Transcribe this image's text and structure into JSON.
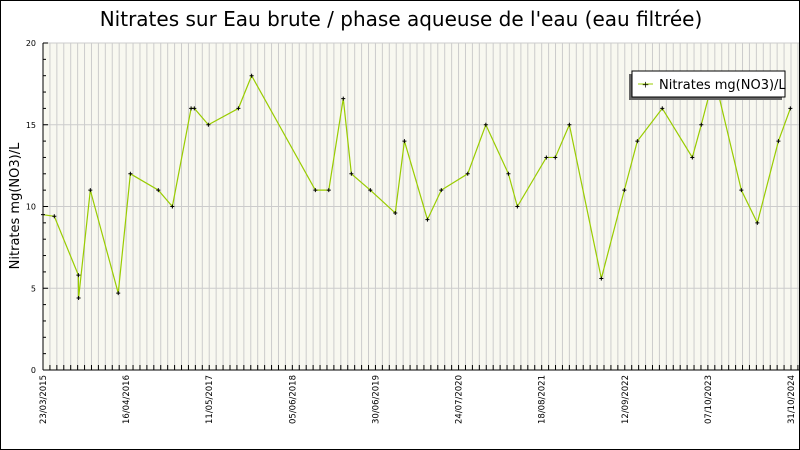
{
  "chart_data": {
    "type": "line",
    "title": "Nitrates sur Eau brute / phase aqueuse de l'eau (eau filtrée)",
    "xlabel": "",
    "ylabel": "Nitrates mg(NO3)/L",
    "ylim": [
      0,
      20
    ],
    "yticks": [
      "0",
      "5",
      "10",
      "15",
      "20"
    ],
    "xlim": [
      "2015-03-23",
      "2024-10-31"
    ],
    "xticks": [
      "23/03/2015",
      "16/04/2016",
      "11/05/2017",
      "05/06/2018",
      "30/06/2019",
      "24/07/2020",
      "18/08/2021",
      "12/09/2022",
      "07/10/2023",
      "31/10/2024"
    ],
    "grid": true,
    "legend_position": "top-right",
    "colors": {
      "line": "#99cc00",
      "marker": "#000000",
      "grid": "#cccccc",
      "plot_bg": "#f8f8f0"
    },
    "series": [
      {
        "name": "Nitrates mg(NO3)/L",
        "x": [
          "2015-03-23",
          "2015-05-15",
          "2015-09-05",
          "2015-09-06",
          "2015-10-31",
          "2016-03-10",
          "2016-05-06",
          "2016-09-14",
          "2016-11-19",
          "2017-02-15",
          "2017-03-02",
          "2017-05-07",
          "2017-09-25",
          "2017-11-26",
          "2018-09-21",
          "2018-11-23",
          "2019-01-30",
          "2019-03-09",
          "2019-06-06",
          "2019-10-01",
          "2019-11-13",
          "2020-02-29",
          "2020-05-04",
          "2020-09-05",
          "2020-11-29",
          "2021-03-15",
          "2021-04-26",
          "2021-09-09",
          "2021-10-21",
          "2021-12-26",
          "2022-05-25",
          "2022-09-10",
          "2022-11-10",
          "2023-03-07",
          "2023-07-26",
          "2023-09-06",
          "2023-11-05",
          "2024-03-12",
          "2024-05-26",
          "2024-09-02",
          "2024-10-28"
        ],
        "y": [
          9.5,
          9.4,
          5.8,
          4.4,
          11,
          4.7,
          12,
          11,
          10,
          16,
          16,
          15,
          16,
          18,
          11,
          11,
          16.6,
          12,
          11,
          9.6,
          14,
          9.2,
          11,
          12,
          15,
          12,
          10,
          13,
          13,
          15,
          5.6,
          11,
          14,
          16,
          13,
          15,
          18,
          11,
          9,
          14,
          16
        ]
      }
    ]
  }
}
